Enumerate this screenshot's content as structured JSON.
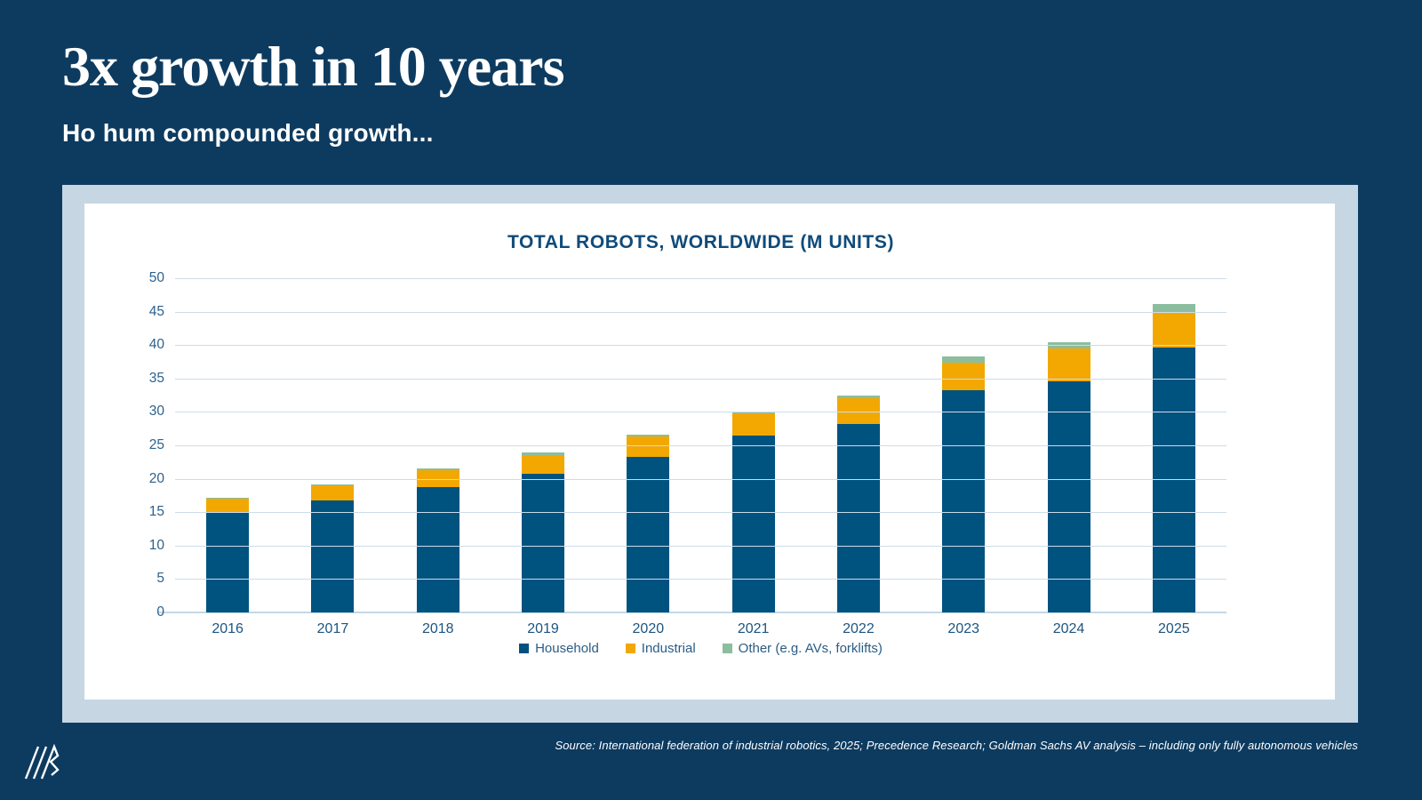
{
  "slide": {
    "title": "3x growth in 10 years",
    "subtitle": "Ho hum compounded growth...",
    "source": "Source: International federation of industrial robotics, 2025; Precedence Research; Goldman Sachs AV analysis – including only fully autonomous vehicles"
  },
  "colors": {
    "background": "#0d3b60",
    "panel": "#c6d6e3",
    "plot_background": "#ffffff",
    "gridline": "#ccdcea",
    "household": "#00527f",
    "industrial": "#f2a800",
    "other": "#8cbd9e",
    "axis_text": "#2e618c",
    "chart_title_text": "#0f4b7a"
  },
  "chart_data": {
    "type": "bar",
    "stacked": true,
    "title": "TOTAL ROBOTS, WORLDWIDE (M UNITS)",
    "categories": [
      "2016",
      "2017",
      "2018",
      "2019",
      "2020",
      "2021",
      "2022",
      "2023",
      "2024",
      "2025"
    ],
    "series": [
      {
        "name": "Household",
        "color": "#00527f",
        "values": [
          15.0,
          16.7,
          18.8,
          20.8,
          23.3,
          26.4,
          28.2,
          33.2,
          34.6,
          39.6
        ]
      },
      {
        "name": "Industrial",
        "color": "#f2a800",
        "values": [
          2.0,
          2.3,
          2.5,
          2.8,
          3.0,
          3.4,
          3.9,
          4.2,
          4.9,
          5.5
        ]
      },
      {
        "name": "Other (e.g. AVs, forklifts)",
        "color": "#8cbd9e",
        "values": [
          0.1,
          0.2,
          0.2,
          0.3,
          0.3,
          0.2,
          0.3,
          0.9,
          0.9,
          1.1
        ]
      }
    ],
    "totals": [
      17.1,
      19.2,
      21.5,
      23.9,
      26.6,
      30.0,
      32.4,
      38.3,
      40.4,
      46.2
    ],
    "xlabel": "",
    "ylabel": "",
    "ylim": [
      0,
      50
    ],
    "ytick_step": 5,
    "grid": true,
    "legend_position": "bottom"
  }
}
